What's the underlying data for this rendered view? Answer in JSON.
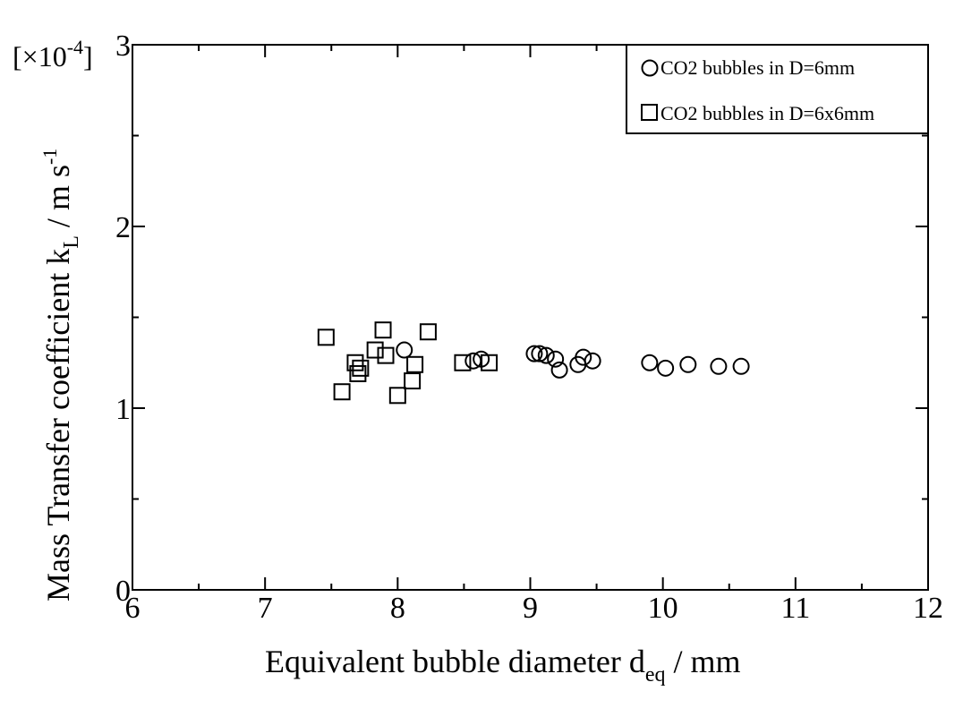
{
  "chart_data": {
    "type": "scatter",
    "xlabel": "Equivalent bubble diameter d",
    "xlabel_sub": "eq",
    "xlabel_unit": " / mm",
    "ylabel": "Mass Transfer coefficient k",
    "ylabel_sub": "L",
    "ylabel_unit": " / m s",
    "ylabel_sup": "-1",
    "y_multiplier": "[×10",
    "y_multiplier_exp": "-4",
    "y_multiplier_close": "]",
    "xlim": [
      6,
      12
    ],
    "ylim": [
      0,
      3
    ],
    "x_ticks": [
      "6",
      "7",
      "8",
      "9",
      "10",
      "11",
      "12"
    ],
    "y_ticks": [
      "0",
      "1",
      "2",
      "3"
    ],
    "grid": false,
    "legend_position": "top-right",
    "series": [
      {
        "name": "CO2 bubbles in D=6mm",
        "marker": "circle",
        "points": [
          [
            8.05,
            1.32
          ],
          [
            8.57,
            1.26
          ],
          [
            8.63,
            1.27
          ],
          [
            9.03,
            1.3
          ],
          [
            9.07,
            1.3
          ],
          [
            9.12,
            1.29
          ],
          [
            9.19,
            1.27
          ],
          [
            9.22,
            1.21
          ],
          [
            9.36,
            1.24
          ],
          [
            9.4,
            1.28
          ],
          [
            9.47,
            1.26
          ],
          [
            9.9,
            1.25
          ],
          [
            10.02,
            1.22
          ],
          [
            10.19,
            1.24
          ],
          [
            10.42,
            1.23
          ],
          [
            10.59,
            1.23
          ]
        ]
      },
      {
        "name": "CO2 bubbles in D=6x6mm",
        "marker": "square",
        "points": [
          [
            7.46,
            1.39
          ],
          [
            7.58,
            1.09
          ],
          [
            7.68,
            1.25
          ],
          [
            7.7,
            1.19
          ],
          [
            7.72,
            1.22
          ],
          [
            7.83,
            1.32
          ],
          [
            7.89,
            1.43
          ],
          [
            7.91,
            1.29
          ],
          [
            8.0,
            1.07
          ],
          [
            8.11,
            1.15
          ],
          [
            8.13,
            1.24
          ],
          [
            8.23,
            1.42
          ],
          [
            8.49,
            1.25
          ],
          [
            8.69,
            1.25
          ]
        ]
      }
    ]
  }
}
